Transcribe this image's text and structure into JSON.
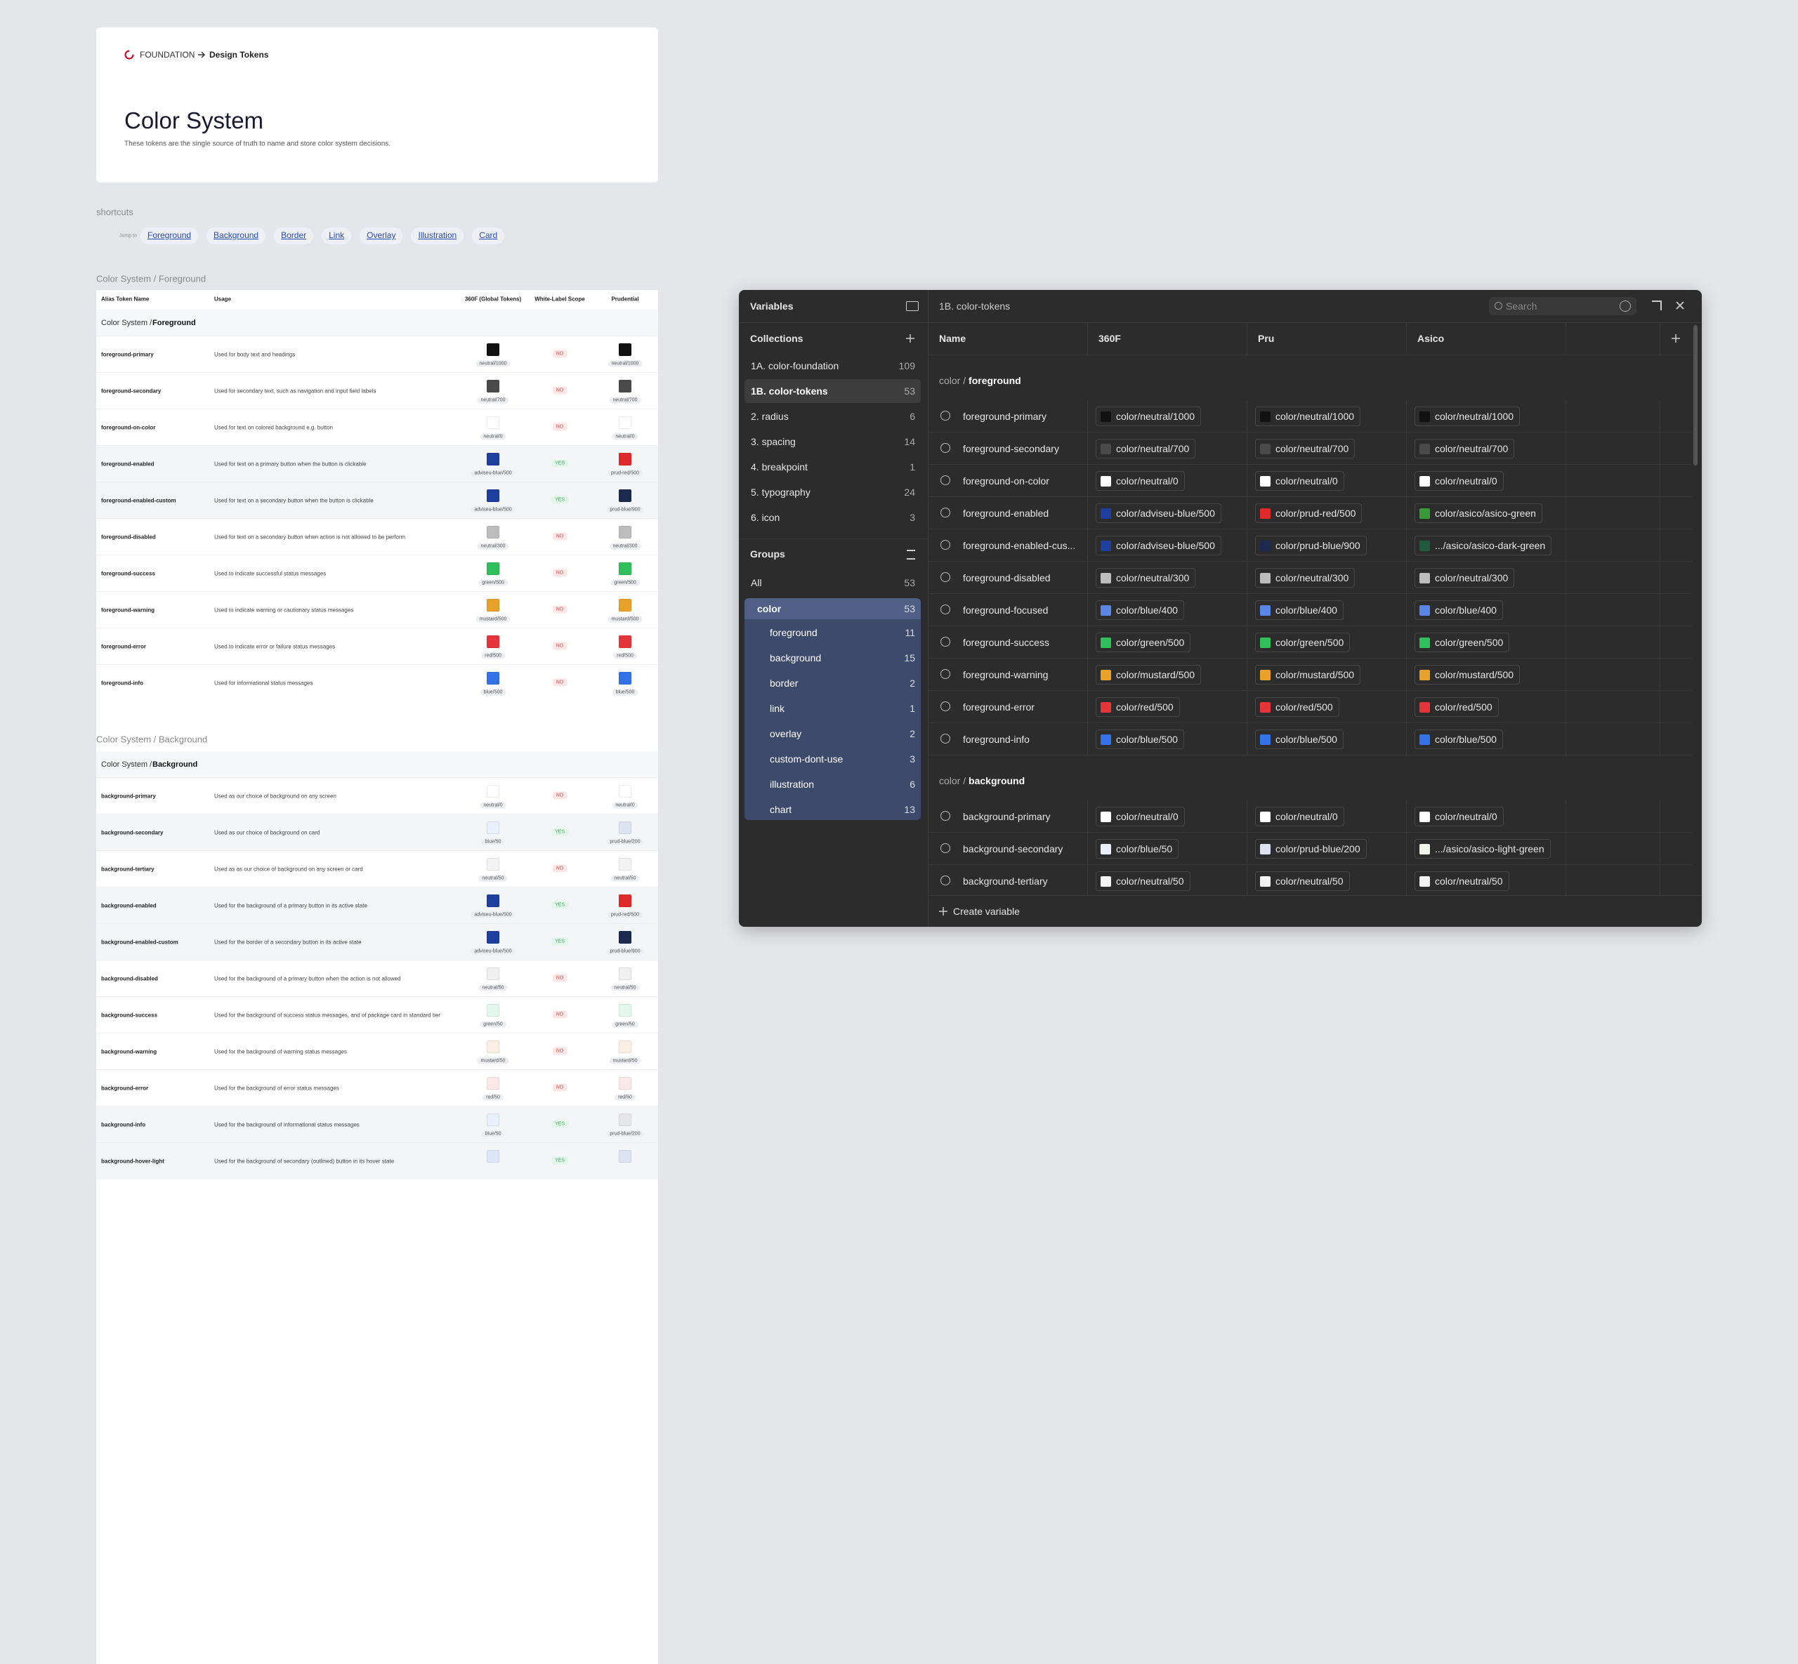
{
  "header": {
    "breadcrumb_root": "FOUNDATION",
    "breadcrumb_page": "Design Tokens",
    "title": "Color System",
    "description": "These tokens are the single source of truth to name and store color system decisions."
  },
  "shortcuts": {
    "label": "shortcuts",
    "jump": "Jump to",
    "links": [
      "Foreground",
      "Background",
      "Border",
      "Link",
      "Overlay",
      "Illustration",
      "Card"
    ]
  },
  "tables": [
    {
      "section": "Color System / Foreground",
      "columns": [
        "Alias Token Name",
        "Usage",
        "360F (Global Tokens)",
        "White-Label Scope",
        "Prudential"
      ],
      "group_path": "Color System",
      "group_name": "Foreground",
      "rows": [
        {
          "name": "foreground-primary",
          "usage": "Used for body text and headings",
          "global": {
            "token": "neutral/1000",
            "color": "#111111"
          },
          "scope": "NO",
          "pru": {
            "token": "neutral/1000",
            "color": "#111111"
          }
        },
        {
          "name": "foreground-secondary",
          "usage": "Used for secondary text, such as navigation and input field labels",
          "global": {
            "token": "neutral/700",
            "color": "#4a4a4a"
          },
          "scope": "NO",
          "pru": {
            "token": "neutral/700",
            "color": "#4a4a4a"
          }
        },
        {
          "name": "foreground-on-color",
          "usage": "Used for text on colored background e.g. button",
          "global": {
            "token": "neutral/0",
            "color": "#ffffff"
          },
          "scope": "NO",
          "pru": {
            "token": "neutral/0",
            "color": "#ffffff"
          }
        },
        {
          "name": "foreground-enabled",
          "usage": "Used for text on a primary button when the button is clickable",
          "global": {
            "token": "adviseu-blue/500",
            "color": "#1e3fa0"
          },
          "scope": "YES",
          "pru": {
            "token": "prud-red/500",
            "color": "#e02a2a"
          }
        },
        {
          "name": "foreground-enabled-custom",
          "usage": "Used for text on a secondary button when the button is clickable",
          "global": {
            "token": "adviseu-blue/500",
            "color": "#1e3fa0"
          },
          "scope": "YES",
          "pru": {
            "token": "prud-blue/900",
            "color": "#1b2a4e"
          }
        },
        {
          "name": "foreground-disabled",
          "usage": "Used for text on a secondary button when action is not allowed to be perform",
          "global": {
            "token": "neutral/300",
            "color": "#bdbdbd"
          },
          "scope": "NO",
          "pru": {
            "token": "neutral/300",
            "color": "#bdbdbd"
          }
        },
        {
          "name": "foreground-success",
          "usage": "Used to indicate successful status messages",
          "global": {
            "token": "green/500",
            "color": "#2fbf5b"
          },
          "scope": "NO",
          "pru": {
            "token": "green/500",
            "color": "#2fbf5b"
          }
        },
        {
          "name": "foreground-warning",
          "usage": "Used to indicate warning or cautionary status messages",
          "global": {
            "token": "mustard/500",
            "color": "#e8a22a"
          },
          "scope": "NO",
          "pru": {
            "token": "mustard/500",
            "color": "#e8a22a"
          }
        },
        {
          "name": "foreground-error",
          "usage": "Used to indicate error or failure status messages",
          "global": {
            "token": "red/500",
            "color": "#e5343a"
          },
          "scope": "NO",
          "pru": {
            "token": "red/500",
            "color": "#e5343a"
          }
        },
        {
          "name": "foreground-info",
          "usage": "Used for informational status messages",
          "global": {
            "token": "blue/500",
            "color": "#3372e8"
          },
          "scope": "NO",
          "pru": {
            "token": "blue/500",
            "color": "#3372e8"
          }
        }
      ]
    },
    {
      "section": "Color System / Background",
      "group_path": "Color System",
      "group_name": "Background",
      "rows": [
        {
          "name": "background-primary",
          "usage": "Used as our choice of background on any screen",
          "global": {
            "token": "neutral/0",
            "color": "#ffffff"
          },
          "scope": "NO",
          "pru": {
            "token": "neutral/0",
            "color": "#ffffff"
          }
        },
        {
          "name": "background-secondary",
          "usage": "Used as our choice of background on card",
          "global": {
            "token": "blue/50",
            "color": "#e9effc"
          },
          "scope": "YES",
          "pru": {
            "token": "prud-blue/200",
            "color": "#dde3f0"
          }
        },
        {
          "name": "background-tertiary",
          "usage": "Used as as our choice of background on any screen or card",
          "global": {
            "token": "neutral/50",
            "color": "#f3f3f3"
          },
          "scope": "NO",
          "pru": {
            "token": "neutral/50",
            "color": "#f3f3f3"
          }
        },
        {
          "name": "background-enabled",
          "usage": "Used for the background of a primary button in its active state",
          "global": {
            "token": "adviseu-blue/500",
            "color": "#1e3fa0"
          },
          "scope": "YES",
          "pru": {
            "token": "prud-red/500",
            "color": "#e02a2a"
          }
        },
        {
          "name": "background-enabled-custom",
          "usage": "Used for the border of a secondary button in its active state",
          "global": {
            "token": "adviseu-blue/500",
            "color": "#1e3fa0"
          },
          "scope": "YES",
          "pru": {
            "token": "prud-blue/900",
            "color": "#1b2a4e"
          }
        },
        {
          "name": "background-disabled",
          "usage": "Used for the background of a primary button when the action is not allowed",
          "global": {
            "token": "neutral/50",
            "color": "#f0f0f0"
          },
          "scope": "NO",
          "pru": {
            "token": "neutral/50",
            "color": "#f0f0f0"
          }
        },
        {
          "name": "background-success",
          "usage": "Used for the background of success status messages, and of package card in standard tier",
          "global": {
            "token": "green/50",
            "color": "#e3f8ec"
          },
          "scope": "NO",
          "pru": {
            "token": "green/50",
            "color": "#e3f8ec"
          }
        },
        {
          "name": "background-warning",
          "usage": "Used for the background of warning status messages",
          "global": {
            "token": "mustard/50",
            "color": "#fcefe3"
          },
          "scope": "NO",
          "pru": {
            "token": "mustard/50",
            "color": "#fcefe3"
          }
        },
        {
          "name": "background-error",
          "usage": "Used for the background of error status messages",
          "global": {
            "token": "red/50",
            "color": "#fce8e8"
          },
          "scope": "NO",
          "pru": {
            "token": "red/50",
            "color": "#fce8e8"
          }
        },
        {
          "name": "background-info",
          "usage": "Used for the background of informational status messages",
          "global": {
            "token": "blue/50",
            "color": "#e9effc"
          },
          "scope": "YES",
          "pru": {
            "token": "prud-blue/200",
            "color": "#e6e6e8"
          }
        },
        {
          "name": "background-hover-light",
          "usage": "Used for the background of secondary (outlined) button in its hover state",
          "global": {
            "color": "#dde5f8"
          },
          "scope": "YES",
          "pru": {
            "color": "#dde3f0"
          }
        }
      ]
    }
  ],
  "panel": {
    "title": "Variables",
    "collection": "1B. color-tokens",
    "search": "Search",
    "collections_label": "Collections",
    "collections": [
      {
        "name": "1A. color-foundation",
        "count": 109
      },
      {
        "name": "1B. color-tokens",
        "count": 53
      },
      {
        "name": "2. radius",
        "count": 6
      },
      {
        "name": "3. spacing",
        "count": 14
      },
      {
        "name": "4. breakpoint",
        "count": 1
      },
      {
        "name": "5. typography",
        "count": 24
      },
      {
        "name": "6. icon",
        "count": 3
      }
    ],
    "groups_label": "Groups",
    "all": {
      "name": "All",
      "count": 53
    },
    "group": {
      "name": "color",
      "count": 53
    },
    "subgroups": [
      {
        "name": "foreground",
        "count": 11
      },
      {
        "name": "background",
        "count": 15
      },
      {
        "name": "border",
        "count": 2
      },
      {
        "name": "link",
        "count": 1
      },
      {
        "name": "overlay",
        "count": 2
      },
      {
        "name": "custom-dont-use",
        "count": 3
      },
      {
        "name": "illustration",
        "count": 6
      },
      {
        "name": "chart",
        "count": 13
      }
    ],
    "columns": [
      "Name",
      "360F",
      "Pru",
      "Asico"
    ],
    "sections": [
      {
        "path": "color",
        "name": "foreground",
        "rows": [
          {
            "name": "foreground-primary",
            "values": [
              {
                "token": "color/neutral/1000",
                "color": "#111111"
              },
              {
                "token": "color/neutral/1000",
                "color": "#111111"
              },
              {
                "token": "color/neutral/1000",
                "color": "#111111"
              }
            ]
          },
          {
            "name": "foreground-secondary",
            "values": [
              {
                "token": "color/neutral/700",
                "color": "#4a4a4a"
              },
              {
                "token": "color/neutral/700",
                "color": "#4a4a4a"
              },
              {
                "token": "color/neutral/700",
                "color": "#4a4a4a"
              }
            ]
          },
          {
            "name": "foreground-on-color",
            "values": [
              {
                "token": "color/neutral/0",
                "color": "#ffffff"
              },
              {
                "token": "color/neutral/0",
                "color": "#ffffff"
              },
              {
                "token": "color/neutral/0",
                "color": "#ffffff"
              }
            ]
          },
          {
            "name": "foreground-enabled",
            "values": [
              {
                "token": "color/adviseu-blue/500",
                "color": "#1e3fa0"
              },
              {
                "token": "color/prud-red/500",
                "color": "#e02a2a"
              },
              {
                "token": "color/asico/asico-green",
                "color": "#3a9a3a"
              }
            ]
          },
          {
            "name": "foreground-enabled-cus...",
            "values": [
              {
                "token": "color/adviseu-blue/500",
                "color": "#1e3fa0"
              },
              {
                "token": "color/prud-blue/900",
                "color": "#1b2a4e"
              },
              {
                "token": ".../asico/asico-dark-green",
                "color": "#1f5a3a"
              }
            ]
          },
          {
            "name": "foreground-disabled",
            "values": [
              {
                "token": "color/neutral/300",
                "color": "#bdbdbd"
              },
              {
                "token": "color/neutral/300",
                "color": "#bdbdbd"
              },
              {
                "token": "color/neutral/300",
                "color": "#bdbdbd"
              }
            ]
          },
          {
            "name": "foreground-focused",
            "values": [
              {
                "token": "color/blue/400",
                "color": "#5a86e8"
              },
              {
                "token": "color/blue/400",
                "color": "#5a86e8"
              },
              {
                "token": "color/blue/400",
                "color": "#5a86e8"
              }
            ]
          },
          {
            "name": "foreground-success",
            "values": [
              {
                "token": "color/green/500",
                "color": "#2fbf5b"
              },
              {
                "token": "color/green/500",
                "color": "#2fbf5b"
              },
              {
                "token": "color/green/500",
                "color": "#2fbf5b"
              }
            ]
          },
          {
            "name": "foreground-warning",
            "values": [
              {
                "token": "color/mustard/500",
                "color": "#e8a22a"
              },
              {
                "token": "color/mustard/500",
                "color": "#e8a22a"
              },
              {
                "token": "color/mustard/500",
                "color": "#e8a22a"
              }
            ]
          },
          {
            "name": "foreground-error",
            "values": [
              {
                "token": "color/red/500",
                "color": "#e5343a"
              },
              {
                "token": "color/red/500",
                "color": "#e5343a"
              },
              {
                "token": "color/red/500",
                "color": "#e5343a"
              }
            ]
          },
          {
            "name": "foreground-info",
            "values": [
              {
                "token": "color/blue/500",
                "color": "#3372e8"
              },
              {
                "token": "color/blue/500",
                "color": "#3372e8"
              },
              {
                "token": "color/blue/500",
                "color": "#3372e8"
              }
            ]
          }
        ]
      },
      {
        "path": "color",
        "name": "background",
        "rows": [
          {
            "name": "background-primary",
            "values": [
              {
                "token": "color/neutral/0",
                "color": "#ffffff"
              },
              {
                "token": "color/neutral/0",
                "color": "#ffffff"
              },
              {
                "token": "color/neutral/0",
                "color": "#ffffff"
              }
            ]
          },
          {
            "name": "background-secondary",
            "values": [
              {
                "token": "color/blue/50",
                "color": "#e9effc"
              },
              {
                "token": "color/prud-blue/200",
                "color": "#dde3f0"
              },
              {
                "token": ".../asico/asico-light-green",
                "color": "#f1f7e8"
              }
            ]
          },
          {
            "name": "background-tertiary",
            "values": [
              {
                "token": "color/neutral/50",
                "color": "#f3f3f3"
              },
              {
                "token": "color/neutral/50",
                "color": "#f3f3f3"
              },
              {
                "token": "color/neutral/50",
                "color": "#f3f3f3"
              }
            ]
          }
        ]
      }
    ],
    "create": "Create variable"
  }
}
